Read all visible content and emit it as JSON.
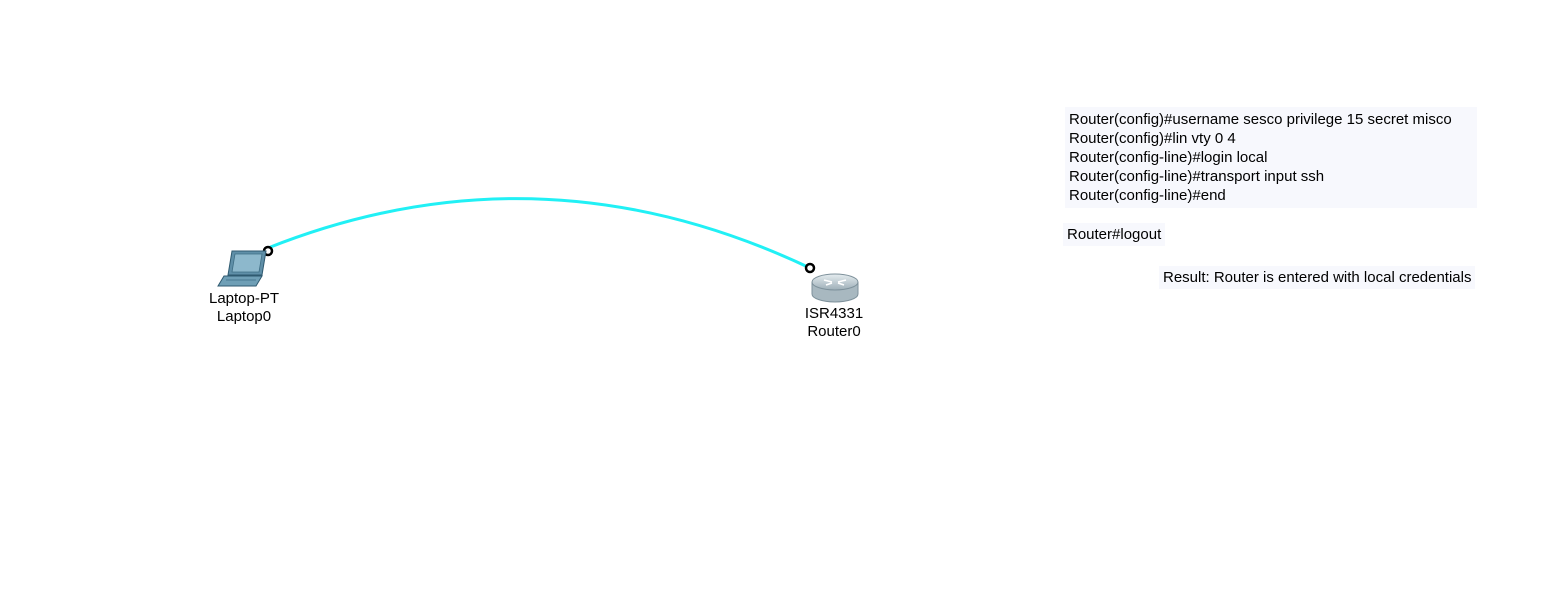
{
  "link": {
    "color": "#21f0f5",
    "endpoint_color": "#000000"
  },
  "devices": {
    "laptop": {
      "icon": "laptop-icon",
      "model": "Laptop-PT",
      "name": "Laptop0"
    },
    "router": {
      "icon": "router-icon",
      "model": "ISR4331",
      "name": "Router0"
    }
  },
  "notes": {
    "config_lines": [
      "Router(config)#username sesco privilege 15 secret misco",
      "Router(config)#lin vty 0 4",
      "Router(config-line)#login local",
      "Router(config-line)#transport input ssh",
      "Router(config-line)#end"
    ],
    "logout": "Router#logout",
    "result": "Result: Router is entered with local credentials"
  },
  "colors": {
    "note_background": "#f7f8fd",
    "laptop_body": "#5f8fa8",
    "router_body": "#c9d3d8"
  }
}
